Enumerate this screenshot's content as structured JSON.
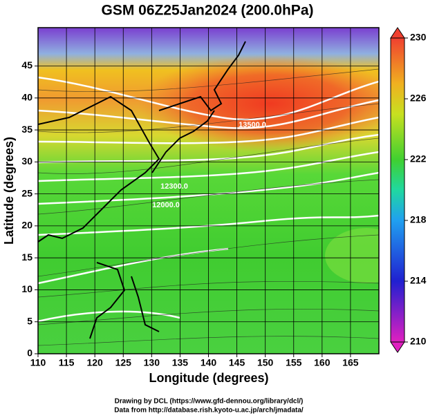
{
  "chart_data": {
    "type": "map",
    "title": "GSM 06Z25Jan2024 (200.0hPa)",
    "x_label": "Longitude (degrees)",
    "y_label": "Latitude  (degrees)",
    "xlim": [
      110,
      170
    ],
    "xticks": [
      110,
      115,
      120,
      125,
      130,
      135,
      140,
      145,
      150,
      155,
      160,
      165
    ],
    "ylim": [
      0,
      51
    ],
    "yticks": [
      0,
      5,
      10,
      15,
      20,
      25,
      30,
      35,
      40,
      45
    ],
    "grid": true,
    "colorbar": {
      "lim": [
        210,
        230
      ],
      "ticks": [
        210,
        214,
        218,
        222,
        226,
        230
      ]
    },
    "contour_labels": [
      "13500.0",
      "12300.0",
      "12000.0"
    ],
    "credits": [
      "Drawing by DCL (https://www.gfd-dennou.org/library/dcl/)",
      "Data from http://database.rish.kyoto-u.ac.jp/arch/jmadata/"
    ]
  }
}
